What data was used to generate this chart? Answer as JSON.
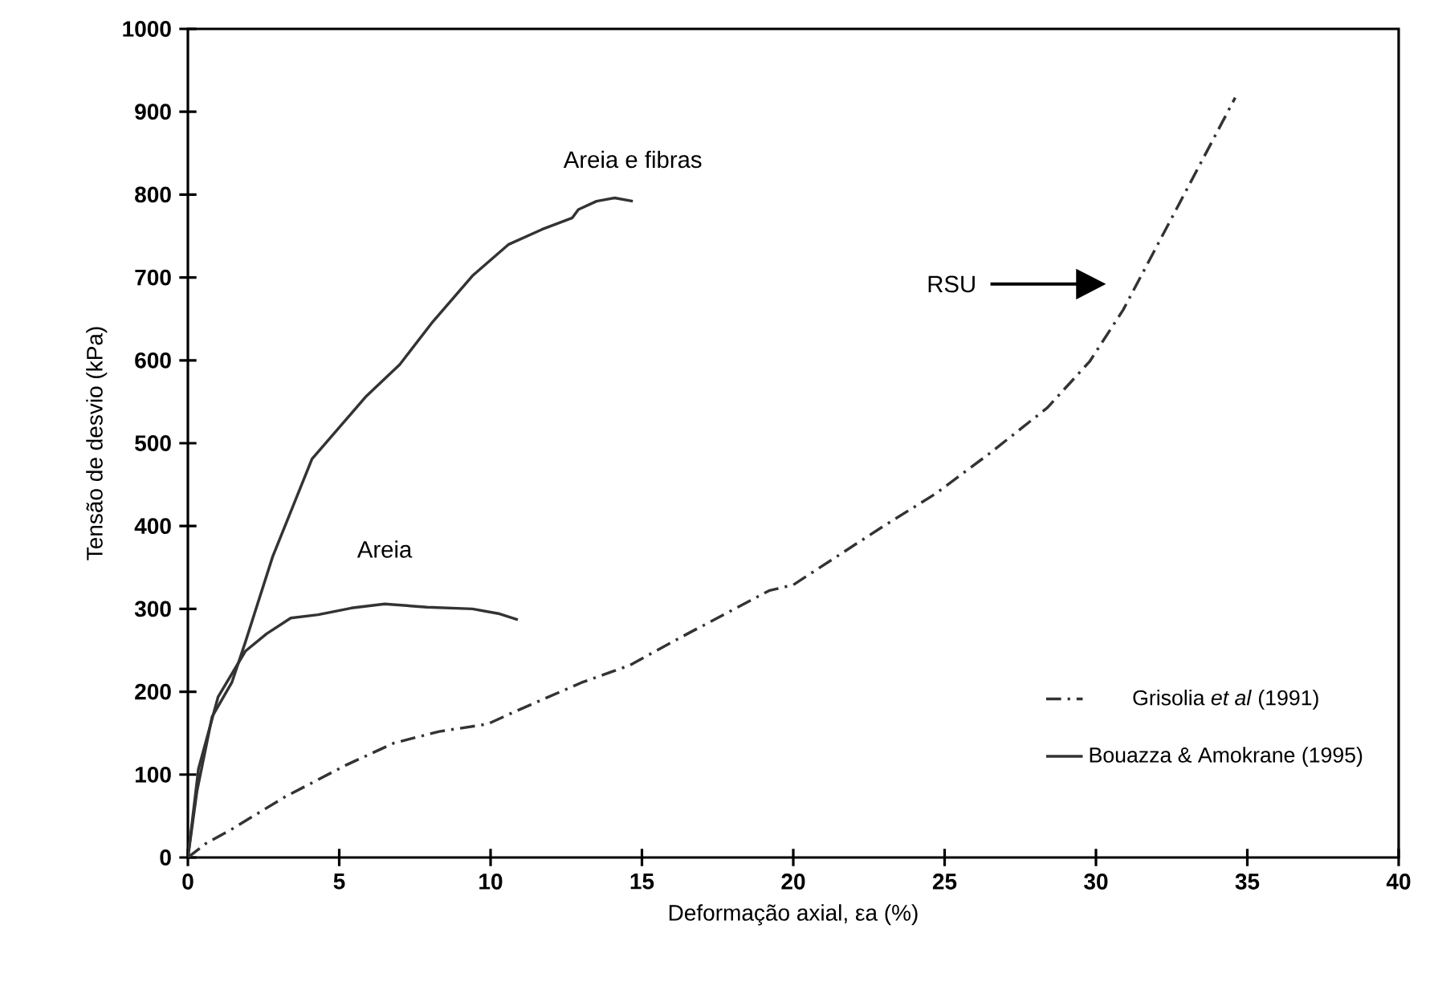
{
  "chart_data": {
    "type": "line",
    "xlabel": "Deformação axial, εa (%)",
    "ylabel": "Tensão de desvio (kPa)",
    "xlim": [
      0,
      40
    ],
    "xticks": [
      0,
      5,
      10,
      15,
      20,
      25,
      30,
      35,
      40
    ],
    "ylim": [
      0,
      1000
    ],
    "yticks": [
      0,
      100,
      200,
      300,
      400,
      500,
      600,
      700,
      800,
      900,
      1000
    ],
    "legend": "bottom right",
    "grid": false,
    "marker": "none",
    "series": [
      {
        "name": "Grisolia *et al* (1991)",
        "color": "#333333",
        "line_style": "dashdot",
        "x": [
          0,
          0.6,
          1.4,
          3.2,
          5.2,
          6.8,
          8.3,
          9.9,
          10.8,
          13.0,
          14.6,
          16.3,
          19.2,
          20,
          22.9,
          24.7,
          26.5,
          28.4,
          29.8,
          30.9,
          32,
          33.3,
          34.6
        ],
        "values": [
          0,
          17,
          33,
          73,
          111,
          138,
          152,
          161,
          176,
          211,
          232,
          266,
          322,
          329,
          398,
          439,
          488,
          543,
          599,
          661,
          737,
          827,
          917
        ]
      },
      {
        "name": "Bouazza & Amokrane (1995)",
        "color": "#333333",
        "line_style": "solid",
        "x": [
          0,
          0.3,
          0.8,
          1.45,
          1.9,
          2.8,
          4.1,
          5,
          5.9,
          7,
          8.1,
          9.4,
          10.6,
          11.7,
          12.7,
          12.9,
          13.5,
          14.1,
          14.7
        ],
        "values": [
          0,
          80,
          170,
          211,
          260,
          363,
          481,
          519,
          557,
          595,
          647,
          702,
          740,
          758,
          772,
          782,
          792,
          796,
          792
        ]
      },
      {
        "color": "#333333",
        "line_style": "solid",
        "x": [
          0,
          0.35,
          1.0,
          1.9,
          2.6,
          3.4,
          4.3,
          5.4,
          6.5,
          7.9,
          9.4,
          10.3,
          10.9
        ],
        "values": [
          0,
          107,
          194,
          249,
          270,
          289,
          293,
          301,
          306,
          302,
          300,
          294,
          287
        ]
      }
    ],
    "annotations": [
      "Areia e fibras",
      "Areia",
      "RSU"
    ]
  }
}
